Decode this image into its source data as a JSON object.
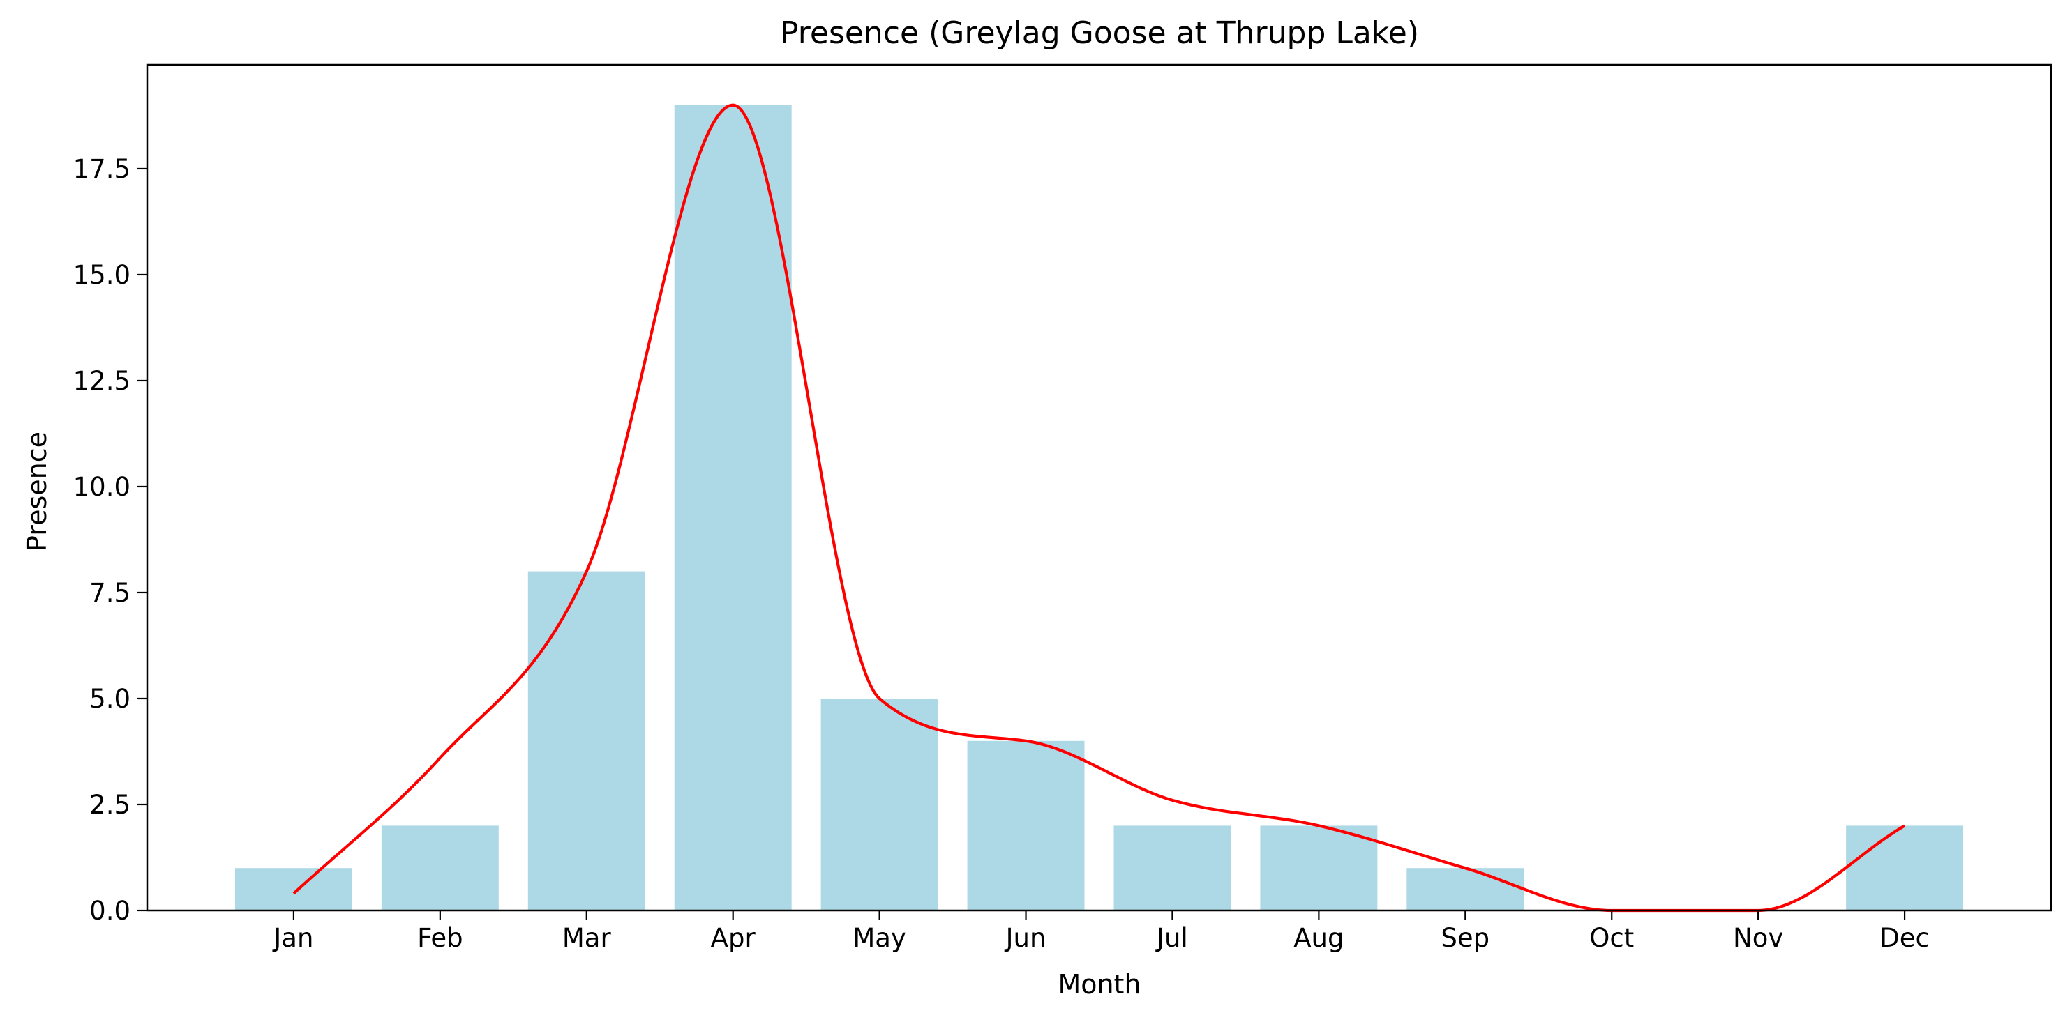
{
  "chart_data": {
    "type": "bar",
    "title": "Presence (Greylag Goose at Thrupp Lake)",
    "xlabel": "Month",
    "ylabel": "Presence",
    "categories": [
      "Jan",
      "Feb",
      "Mar",
      "Apr",
      "May",
      "Jun",
      "Jul",
      "Aug",
      "Sep",
      "Oct",
      "Nov",
      "Dec"
    ],
    "values": [
      1,
      2,
      8,
      19,
      5,
      4,
      2,
      2,
      1,
      0,
      0,
      2
    ],
    "trend_line": {
      "x": [
        0,
        1,
        2,
        3,
        4,
        5,
        6,
        7,
        8,
        9,
        10,
        11
      ],
      "y": [
        0.4,
        3.6,
        8.0,
        19.0,
        5.0,
        4.0,
        2.6,
        2.0,
        1.0,
        0.0,
        0.0,
        2.0
      ]
    },
    "ylim": [
      0,
      19.95
    ],
    "yticks": [
      "0.0",
      "2.5",
      "5.0",
      "7.5",
      "10.0",
      "12.5",
      "15.0",
      "17.5"
    ],
    "ytick_values": [
      0,
      2.5,
      5,
      7.5,
      10,
      12.5,
      15,
      17.5
    ],
    "grid": false,
    "colors": {
      "bar": "#add8e6",
      "line": "#ff0000",
      "axes": "#000000"
    }
  }
}
